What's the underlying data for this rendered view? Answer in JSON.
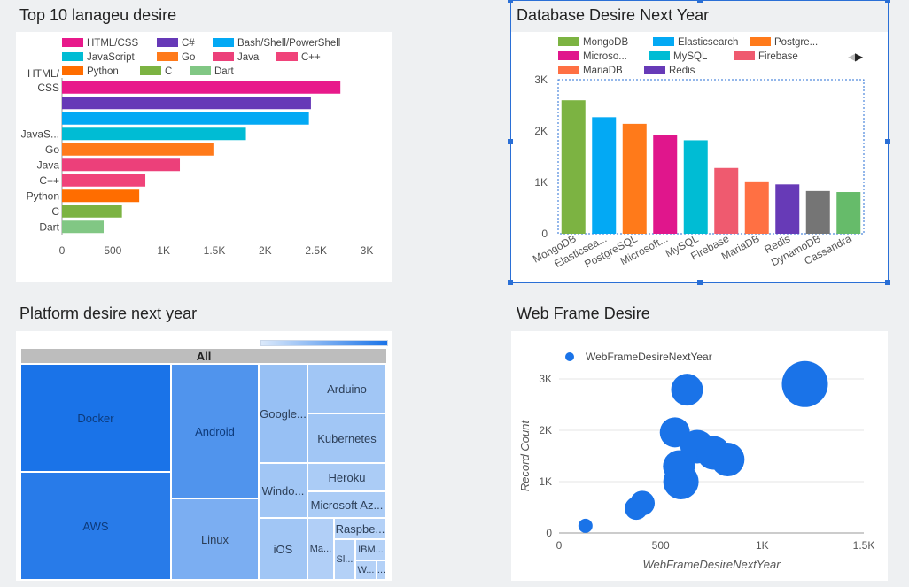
{
  "panels": {
    "lang": {
      "title": "Top 10 lanageu desire"
    },
    "db": {
      "title": "Database Desire Next Year"
    },
    "platform": {
      "title": "Platform desire next year"
    },
    "web": {
      "title": "Web Frame Desire"
    }
  },
  "chart_data": [
    {
      "id": "lang",
      "type": "bar",
      "orientation": "horizontal",
      "title": "Top 10 lanageu desire",
      "categories": [
        "HTML/CSS",
        "C#",
        "Bash/Shell/PowerShell",
        "JavaScript",
        "Go",
        "Java",
        "C++",
        "Python",
        "C",
        "Dart"
      ],
      "category_labels": [
        "HTML/ CSS",
        "",
        "",
        "JavaS...",
        "Go",
        "Java",
        "C++",
        "Python",
        "C",
        "Dart"
      ],
      "values": [
        2740,
        2450,
        2430,
        1810,
        1490,
        1160,
        820,
        760,
        590,
        410
      ],
      "colors": [
        "#e8198b",
        "#6639b7",
        "#03a9f4",
        "#00bcd4",
        "#ff7a1a",
        "#ec407a",
        "#f0437a",
        "#ff6d00",
        "#7cb342",
        "#81c784"
      ],
      "xticks": [
        "0",
        "500",
        "1K",
        "1.5K",
        "2K",
        "2.5K",
        "3K"
      ],
      "xlim": [
        0,
        3000
      ],
      "legend": [
        {
          "label": "HTML/CSS",
          "color": "#e8198b"
        },
        {
          "label": "C#",
          "color": "#6639b7"
        },
        {
          "label": "Bash/Shell/PowerShell",
          "color": "#03a9f4"
        },
        {
          "label": "JavaScript",
          "color": "#00bcd4"
        },
        {
          "label": "Go",
          "color": "#ff7a1a"
        },
        {
          "label": "Java",
          "color": "#ec407a"
        },
        {
          "label": "C++",
          "color": "#f0437a"
        },
        {
          "label": "Python",
          "color": "#ff6d00"
        },
        {
          "label": "C",
          "color": "#7cb342"
        },
        {
          "label": "Dart",
          "color": "#81c784"
        }
      ],
      "legend_position": "top"
    },
    {
      "id": "db",
      "type": "bar",
      "title": "Database Desire Next Year",
      "categories": [
        "MongoDB",
        "Elasticsearch",
        "PostgreSQL",
        "Microsoft SQL Server",
        "MySQL",
        "Firebase",
        "MariaDB",
        "Redis",
        "DynamoDB",
        "Cassandra"
      ],
      "category_labels": [
        "MongoDB",
        "Elasticsea...",
        "PostgreSQL",
        "Microsoft...",
        "MySQL",
        "Firebase",
        "MariaDB",
        "Redis",
        "DynamoDB",
        "Cassandra"
      ],
      "values": [
        2600,
        2270,
        2140,
        1930,
        1820,
        1280,
        1020,
        960,
        830,
        810
      ],
      "colors": [
        "#7cb342",
        "#03a9f4",
        "#ff7a1a",
        "#e0168c",
        "#00bcd4",
        "#ef5a6f",
        "#ff7043",
        "#673ab7",
        "#757575",
        "#66bb6a"
      ],
      "yticks": [
        "0",
        "1K",
        "2K",
        "3K"
      ],
      "ylim": [
        0,
        3000
      ],
      "legend": [
        {
          "label": "MongoDB",
          "color": "#7cb342"
        },
        {
          "label": "Elasticsearch",
          "color": "#03a9f4"
        },
        {
          "label": "Postgre...",
          "color": "#ff7a1a"
        },
        {
          "label": "Microso...",
          "color": "#e0168c"
        },
        {
          "label": "MySQL",
          "color": "#00bcd4"
        },
        {
          "label": "Firebase",
          "color": "#ef5a6f"
        },
        {
          "label": "MariaDB",
          "color": "#ff7043"
        },
        {
          "label": "Redis",
          "color": "#673ab7"
        }
      ],
      "legend_position": "top"
    },
    {
      "id": "platform",
      "type": "treemap",
      "title": "Platform desire next year",
      "root_label": "All",
      "items": [
        {
          "label": "Docker",
          "shade": 1.0
        },
        {
          "label": "AWS",
          "shade": 0.93
        },
        {
          "label": "Android",
          "shade": 0.72
        },
        {
          "label": "Linux",
          "shade": 0.5
        },
        {
          "label": "Google...",
          "shade": 0.35
        },
        {
          "label": "Arduino",
          "shade": 0.3
        },
        {
          "label": "Kubernetes",
          "shade": 0.3
        },
        {
          "label": "Windo...",
          "shade": 0.3
        },
        {
          "label": "Heroku",
          "shade": 0.25
        },
        {
          "label": "Microsoft Az...",
          "shade": 0.25
        },
        {
          "label": "iOS",
          "shade": 0.3
        },
        {
          "label": "Ma...",
          "shade": 0.22
        },
        {
          "label": "Raspbe...",
          "shade": 0.2
        },
        {
          "label": "Sl...",
          "shade": 0.2
        },
        {
          "label": "IBM...",
          "shade": 0.2
        },
        {
          "label": "W...",
          "shade": 0.2
        },
        {
          "label": "...",
          "shade": 0.2
        }
      ],
      "colors": {
        "max": "#1a73e8",
        "min": "#dbe9fb"
      }
    },
    {
      "id": "web",
      "type": "scatter",
      "title": "Web Frame Desire",
      "xlabel": "WebFrameDesireNextYear",
      "ylabel": "Record Count",
      "series": [
        {
          "name": "WebFrameDesireNextYear",
          "color": "#1a73e8",
          "points": [
            {
              "x": 130,
              "y": 140,
              "size": 8
            },
            {
              "x": 380,
              "y": 480,
              "size": 13
            },
            {
              "x": 410,
              "y": 580,
              "size": 14
            },
            {
              "x": 600,
              "y": 1000,
              "size": 20
            },
            {
              "x": 590,
              "y": 1300,
              "size": 18
            },
            {
              "x": 570,
              "y": 1960,
              "size": 17
            },
            {
              "x": 630,
              "y": 2790,
              "size": 18
            },
            {
              "x": 680,
              "y": 1680,
              "size": 19
            },
            {
              "x": 760,
              "y": 1560,
              "size": 19
            },
            {
              "x": 830,
              "y": 1430,
              "size": 19
            },
            {
              "x": 1210,
              "y": 2900,
              "size": 26
            }
          ]
        }
      ],
      "xticks": [
        "0",
        "500",
        "1K",
        "1.5K"
      ],
      "yticks": [
        "0",
        "1K",
        "2K",
        "3K"
      ],
      "xlim": [
        0,
        1500
      ],
      "ylim": [
        0,
        3000
      ],
      "legend_position": "top-left"
    }
  ]
}
